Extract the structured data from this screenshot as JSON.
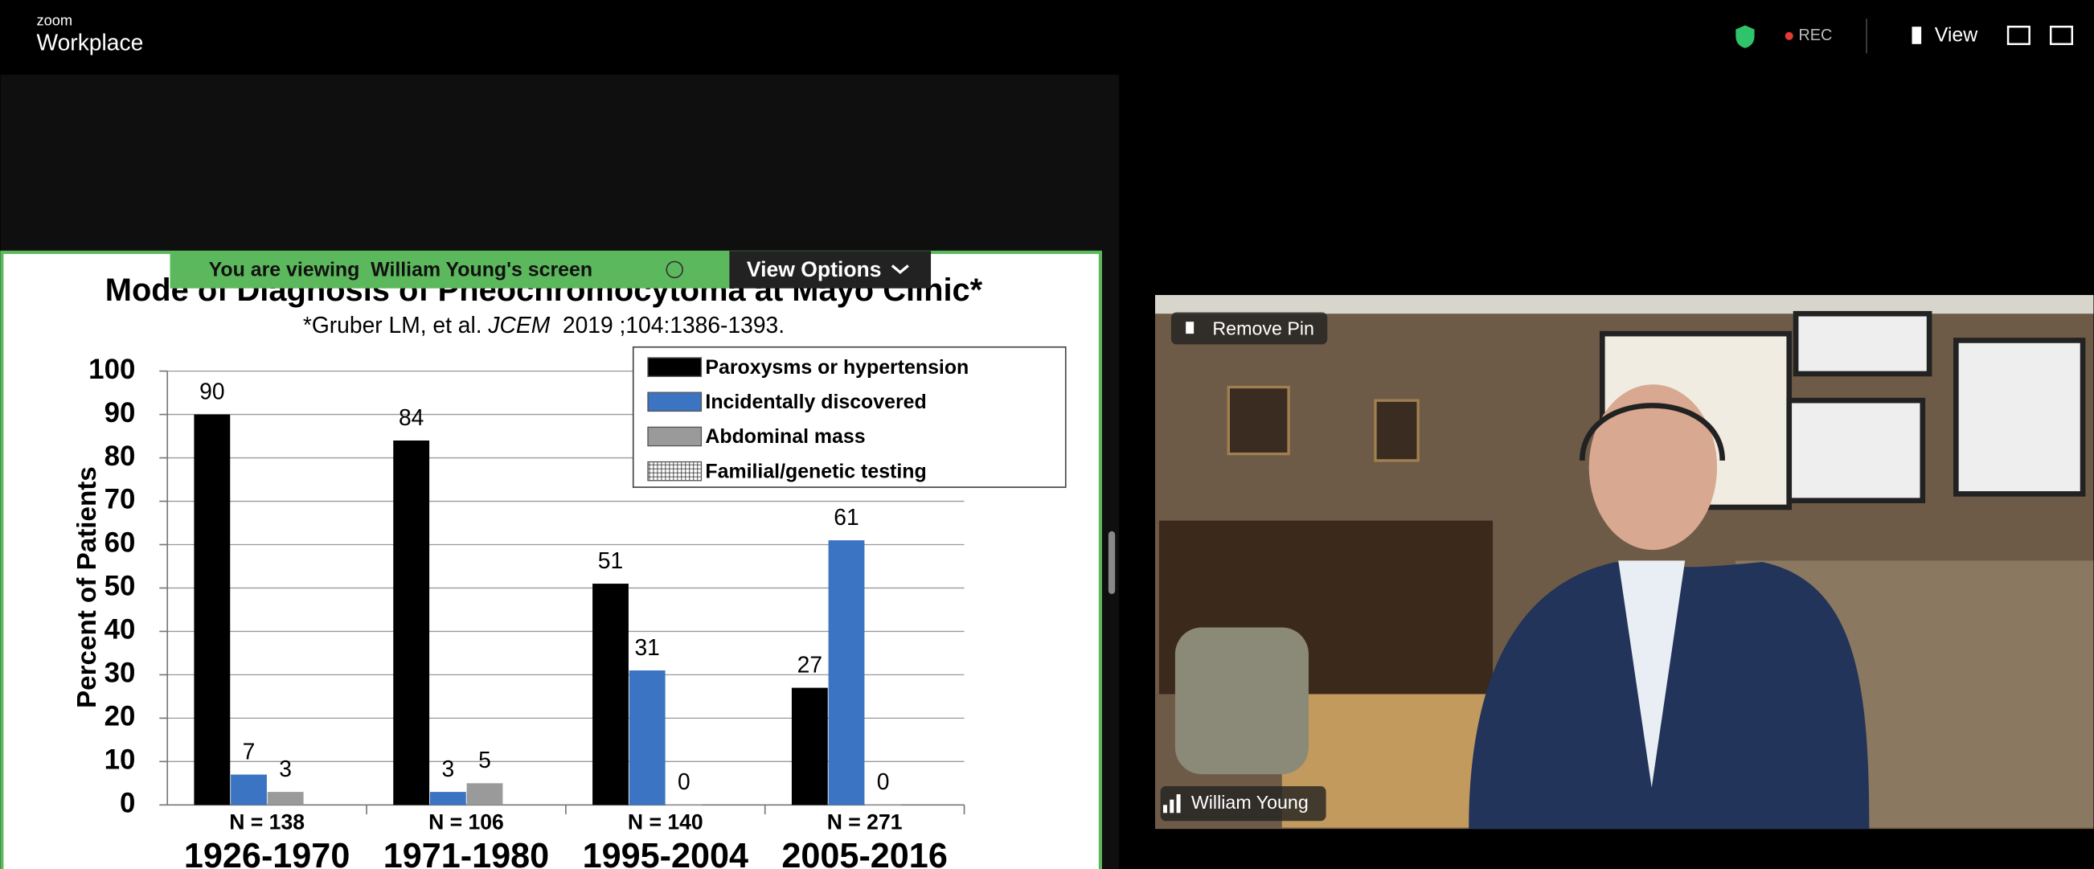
{
  "app": {
    "brand_top": "zoom",
    "brand": "Workplace",
    "rec": "REC",
    "view": "View"
  },
  "share_banner": {
    "text": "You are viewing  William Young's screen",
    "options": "View Options"
  },
  "video": {
    "pin": "Remove Pin",
    "name": "William Young"
  },
  "chart_data": {
    "type": "bar",
    "title": "Mode of Diagnosis of Pheochromocytoma at Mayo Clinic*",
    "subtitle": [
      "*Gruber LM, et al. ",
      "JCEM",
      "  2019 ;104:1386-1393."
    ],
    "ylabel": "Percent of Patients",
    "categories": [
      "1926-1970",
      "1971-1980",
      "1995-2004",
      "2005-2016"
    ],
    "n_labels": [
      "N = 138",
      "N = 106",
      "N = 140",
      "N = 271"
    ],
    "series": [
      {
        "name": "Paroxysms or hypertension",
        "color": "#000000",
        "values": [
          90,
          84,
          51,
          27
        ]
      },
      {
        "name": "Incidentally discovered",
        "color": "#3a74c2",
        "values": [
          7,
          3,
          31,
          61
        ]
      },
      {
        "name": "Abdominal mass",
        "color": "#9a9a9a",
        "values": [
          3,
          5,
          0,
          0
        ]
      },
      {
        "name": "Familial/genetic testing",
        "color": "#ffffff",
        "pattern": "grid",
        "values": [
          null,
          null,
          null,
          null
        ]
      }
    ],
    "ylim": [
      0,
      100
    ],
    "yticks": [
      0,
      10,
      20,
      30,
      40,
      50,
      60,
      70,
      80,
      90,
      100
    ],
    "grid": true,
    "legend": "upper right"
  }
}
